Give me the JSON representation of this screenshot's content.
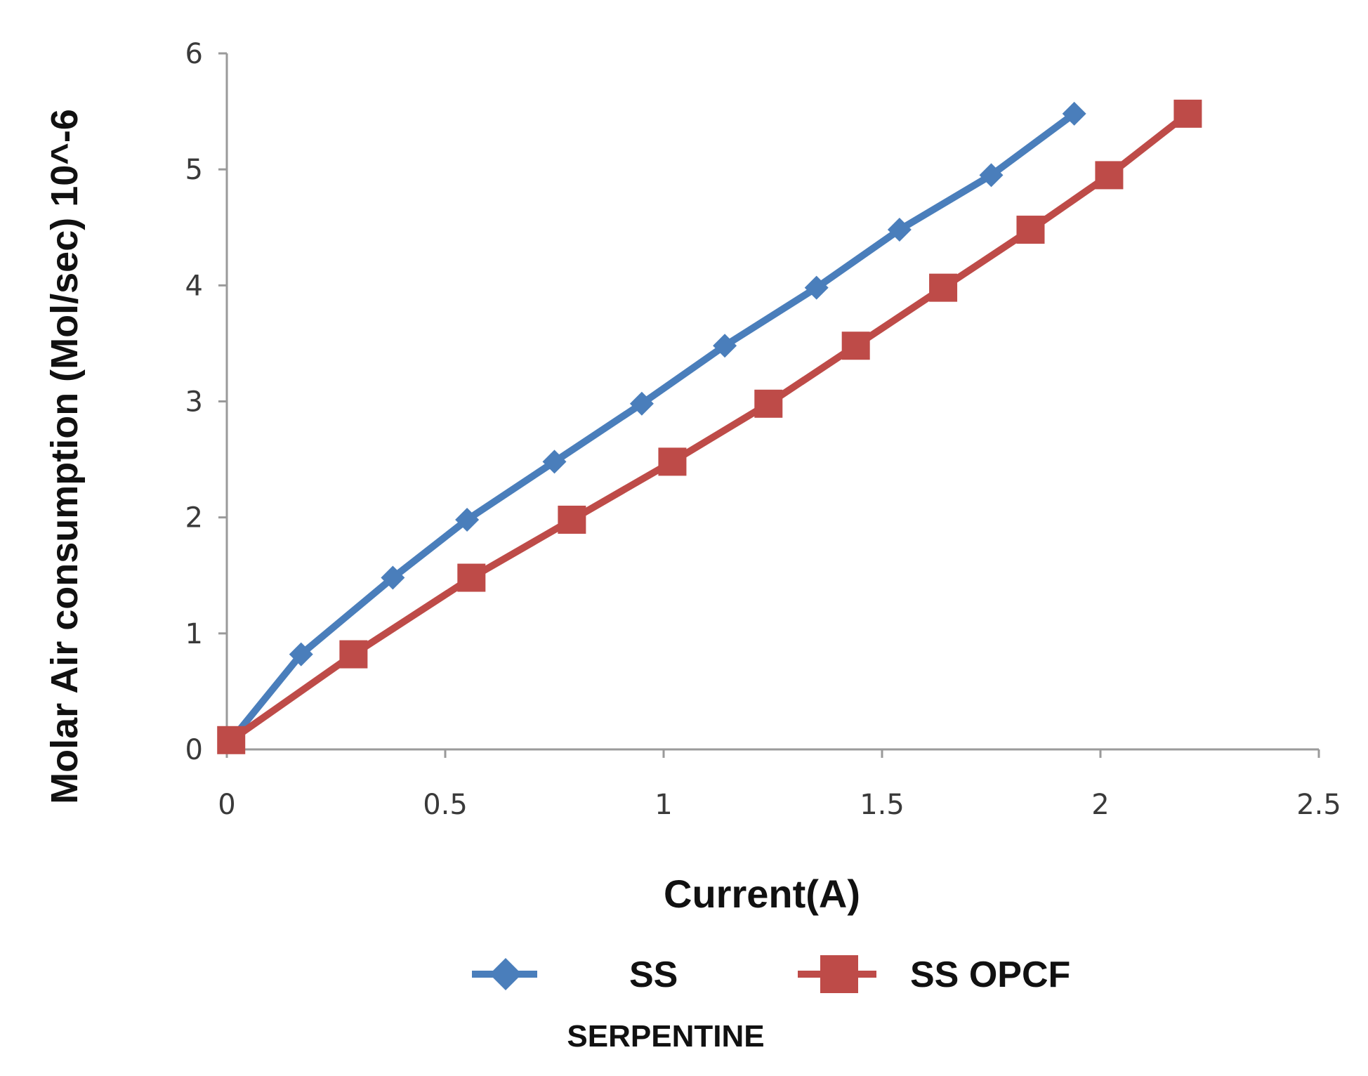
{
  "chart_data": {
    "type": "line",
    "title": "",
    "xlabel": "Current(A)",
    "ylabel": "Molar Air consumption (Mol/sec) 10^-6",
    "xlim": [
      0,
      2.5
    ],
    "ylim": [
      0,
      6
    ],
    "x_ticks": [
      "0",
      "0.5",
      "1",
      "1.5",
      "2",
      "2.5"
    ],
    "y_ticks": [
      "0",
      "1",
      "2",
      "3",
      "4",
      "5",
      "6"
    ],
    "grid": false,
    "legend_position": "bottom",
    "series": [
      {
        "name": "SS",
        "color": "#4a7ebb",
        "marker": "diamond",
        "x": [
          0.01,
          0.17,
          0.38,
          0.55,
          0.75,
          0.95,
          1.14,
          1.35,
          1.54,
          1.75,
          1.94
        ],
        "y": [
          0.08,
          0.82,
          1.48,
          1.98,
          2.48,
          2.98,
          3.48,
          3.98,
          4.48,
          4.95,
          5.48
        ]
      },
      {
        "name": "SS OPCF",
        "color": "#be4b48",
        "marker": "square",
        "x": [
          0.01,
          0.29,
          0.56,
          0.79,
          1.02,
          1.24,
          1.44,
          1.64,
          1.84,
          2.02,
          2.2
        ],
        "y": [
          0.08,
          0.82,
          1.48,
          1.98,
          2.48,
          2.98,
          3.48,
          3.98,
          4.48,
          4.95,
          5.48
        ]
      }
    ],
    "caption": "SERPENTINE"
  }
}
